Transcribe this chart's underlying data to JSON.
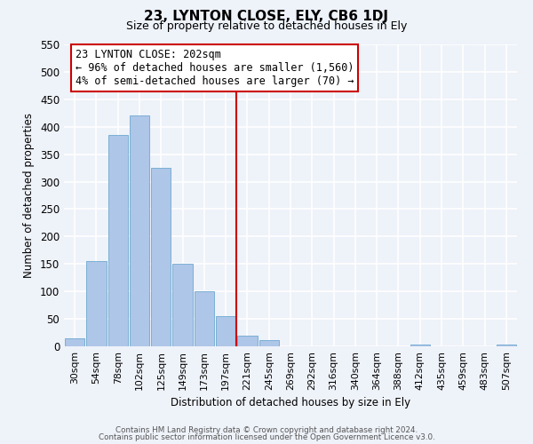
{
  "title": "23, LYNTON CLOSE, ELY, CB6 1DJ",
  "subtitle": "Size of property relative to detached houses in Ely",
  "xlabel": "Distribution of detached houses by size in Ely",
  "ylabel": "Number of detached properties",
  "bar_labels": [
    "30sqm",
    "54sqm",
    "78sqm",
    "102sqm",
    "125sqm",
    "149sqm",
    "173sqm",
    "197sqm",
    "221sqm",
    "245sqm",
    "269sqm",
    "292sqm",
    "316sqm",
    "340sqm",
    "364sqm",
    "388sqm",
    "412sqm",
    "435sqm",
    "459sqm",
    "483sqm",
    "507sqm"
  ],
  "bar_heights": [
    15,
    155,
    385,
    420,
    325,
    150,
    100,
    55,
    20,
    12,
    0,
    0,
    0,
    0,
    0,
    0,
    3,
    0,
    0,
    0,
    3
  ],
  "bar_color": "#aec6e8",
  "bar_edge_color": "#5a9ec9",
  "bg_color": "#eef2f9",
  "grid_color": "#ffffff",
  "vline_x": 7.5,
  "vline_color": "#cc0000",
  "annotation_text": "23 LYNTON CLOSE: 202sqm\n← 96% of detached houses are smaller (1,560)\n4% of semi-detached houses are larger (70) →",
  "annotation_box_color": "#cc0000",
  "ylim": [
    0,
    550
  ],
  "yticks": [
    0,
    50,
    100,
    150,
    200,
    250,
    300,
    350,
    400,
    450,
    500,
    550
  ],
  "footer1": "Contains HM Land Registry data © Crown copyright and database right 2024.",
  "footer2": "Contains public sector information licensed under the Open Government Licence v3.0."
}
